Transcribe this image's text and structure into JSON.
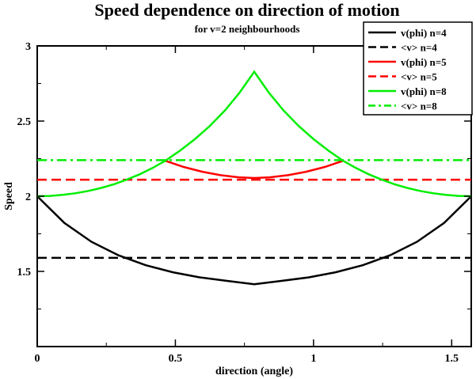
{
  "chart_data": {
    "type": "line",
    "title": "Speed dependence on direction of motion",
    "subtitle": "for v=2 neighbourhoods",
    "xlabel": "direction (angle)",
    "ylabel": "Speed",
    "xlim": [
      0,
      1.5708
    ],
    "ylim": [
      1.0,
      3.0
    ],
    "x_ticks": [
      0,
      0.5,
      1,
      1.5
    ],
    "x_tick_labels": [
      "0",
      "0.5",
      "1",
      "1.5"
    ],
    "y_ticks": [
      1.5,
      2,
      2.5,
      3
    ],
    "y_tick_labels": [
      "1.5",
      "2",
      "2.5",
      "3"
    ],
    "grid": false,
    "legend_position": "top-right",
    "series": [
      {
        "name": "v(phi) n=4",
        "color": "#000000",
        "style": "solid",
        "kind": "curve",
        "x": [
          0,
          0.0982,
          0.1963,
          0.2945,
          0.3927,
          0.4909,
          0.589,
          0.6872,
          0.7854,
          0.8836,
          0.9817,
          1.0799,
          1.1781,
          1.2763,
          1.3744,
          1.4726,
          1.5708
        ],
        "y": [
          2.0,
          1.822,
          1.697,
          1.607,
          1.541,
          1.494,
          1.46,
          1.437,
          1.414,
          1.437,
          1.46,
          1.494,
          1.541,
          1.607,
          1.697,
          1.822,
          2.0
        ]
      },
      {
        "name": "<v> n=4",
        "color": "#000000",
        "style": "dashed",
        "kind": "constant",
        "value": 1.59
      },
      {
        "name": "v(phi) n=5",
        "color": "#ff0000",
        "style": "solid",
        "kind": "curve",
        "x": [
          0.4636,
          0.5301,
          0.5966,
          0.6631,
          0.7296,
          0.7854,
          0.8412,
          0.9077,
          0.9742,
          1.0407,
          1.1071
        ],
        "y": [
          2.236,
          2.195,
          2.163,
          2.14,
          2.126,
          2.121,
          2.126,
          2.14,
          2.163,
          2.195,
          2.236
        ]
      },
      {
        "name": "<v> n=5",
        "color": "#ff0000",
        "style": "dashed",
        "kind": "constant",
        "value": 2.11
      },
      {
        "name": "v(phi) n=8",
        "color": "#00ee00",
        "style": "solid",
        "kind": "curve",
        "x": [
          0,
          0.0464,
          0.0927,
          0.1391,
          0.1854,
          0.2318,
          0.2782,
          0.3245,
          0.3709,
          0.4173,
          0.4636,
          0.5168,
          0.57,
          0.6232,
          0.6795,
          0.7325,
          0.7854,
          0.8383,
          0.8913,
          0.9476,
          1.0008,
          1.054,
          1.1071,
          1.1535,
          1.1999,
          1.2463,
          1.2926,
          1.339,
          1.3854,
          1.4317,
          1.4781,
          1.5244,
          1.5708
        ],
        "y": [
          2.0,
          2.002,
          2.009,
          2.02,
          2.035,
          2.055,
          2.08,
          2.111,
          2.146,
          2.188,
          2.236,
          2.303,
          2.379,
          2.465,
          2.571,
          2.689,
          2.828,
          2.689,
          2.571,
          2.465,
          2.379,
          2.303,
          2.236,
          2.188,
          2.146,
          2.111,
          2.08,
          2.055,
          2.035,
          2.02,
          2.009,
          2.002,
          2.0
        ]
      },
      {
        "name": "<v> n=8",
        "color": "#00ee00",
        "style": "dashdot",
        "kind": "constant",
        "value": 2.24
      }
    ]
  }
}
